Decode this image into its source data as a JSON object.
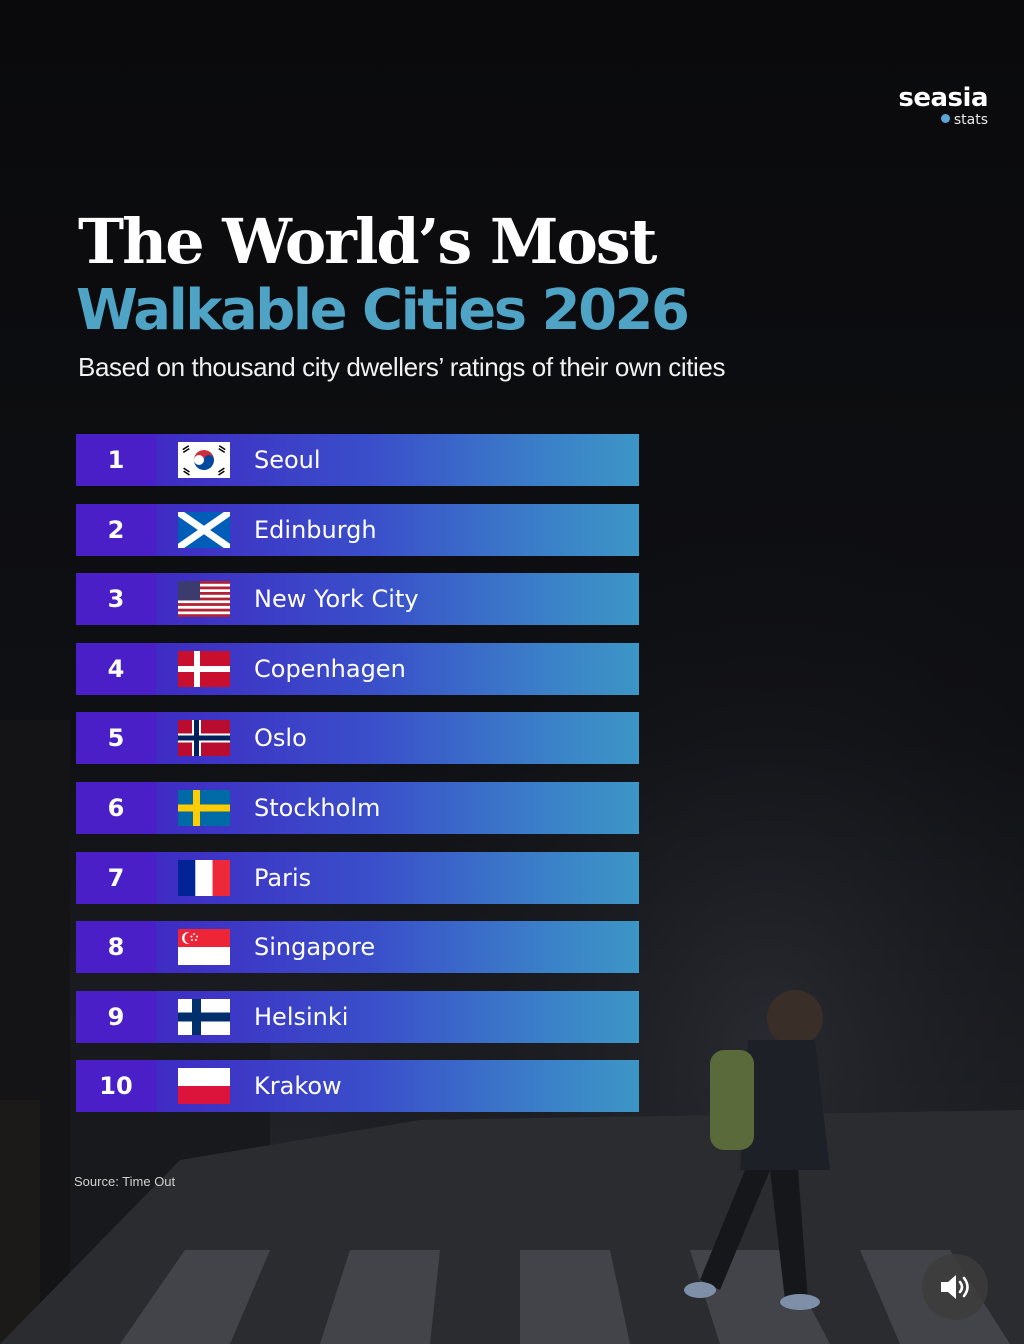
{
  "brand": {
    "name": "seasia",
    "sub": "stats"
  },
  "title_line1": "The World’s Most",
  "title_line2": "Walkable Cities 2026",
  "subtitle": "Based on thousand city dwellers’ ratings of their own cities",
  "rankings": [
    {
      "rank": "1",
      "city": "Seoul",
      "flag": "south-korea-flag-icon"
    },
    {
      "rank": "2",
      "city": "Edinburgh",
      "flag": "scotland-flag-icon"
    },
    {
      "rank": "3",
      "city": "New York City",
      "flag": "usa-flag-icon"
    },
    {
      "rank": "4",
      "city": "Copenhagen",
      "flag": "denmark-flag-icon"
    },
    {
      "rank": "5",
      "city": "Oslo",
      "flag": "norway-flag-icon"
    },
    {
      "rank": "6",
      "city": "Stockholm",
      "flag": "sweden-flag-icon"
    },
    {
      "rank": "7",
      "city": "Paris",
      "flag": "france-flag-icon"
    },
    {
      "rank": "8",
      "city": "Singapore",
      "flag": "singapore-flag-icon"
    },
    {
      "rank": "9",
      "city": "Helsinki",
      "flag": "finland-flag-icon"
    },
    {
      "rank": "10",
      "city": "Krakow",
      "flag": "poland-flag-icon"
    }
  ],
  "source": "Source: Time Out",
  "sound_button": {
    "icon": "speaker-icon"
  },
  "colors": {
    "rank_bg": "#4a1fc7",
    "bar_start": "#3f2bc4",
    "bar_end": "#3c96c6",
    "accent": "#4fa3c4"
  }
}
